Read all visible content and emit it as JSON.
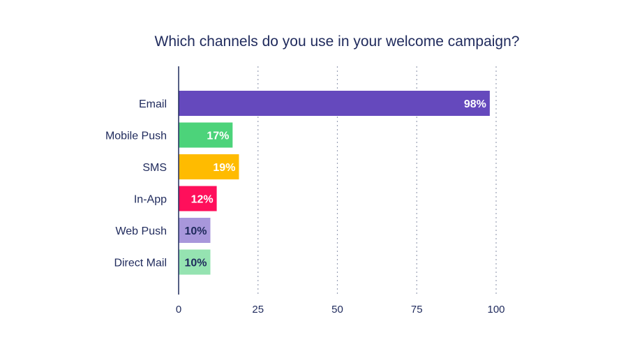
{
  "chart_data": {
    "type": "bar",
    "orientation": "horizontal",
    "title": "Which channels do you use in your welcome campaign?",
    "categories": [
      "Email",
      "Mobile Push",
      "SMS",
      "In-App",
      "Web Push",
      "Direct Mail"
    ],
    "values": [
      98,
      17,
      19,
      12,
      10,
      10
    ],
    "data_labels": [
      "98%",
      "17%",
      "19%",
      "12%",
      "10%",
      "10%"
    ],
    "bar_colors": [
      "#6549bd",
      "#4cd37a",
      "#ffbb00",
      "#ff0f5b",
      "#a897db",
      "#95e3b1"
    ],
    "label_colors": [
      "#ffffff",
      "#ffffff",
      "#ffffff",
      "#ffffff",
      "#1f2a5c",
      "#1f2a5c"
    ],
    "xlim": [
      0,
      100
    ],
    "xticks": [
      0,
      25,
      50,
      75,
      100
    ],
    "xtick_labels": [
      "0",
      "25",
      "50",
      "75",
      "100"
    ],
    "grid": "vertical dotted",
    "legend": "none"
  }
}
